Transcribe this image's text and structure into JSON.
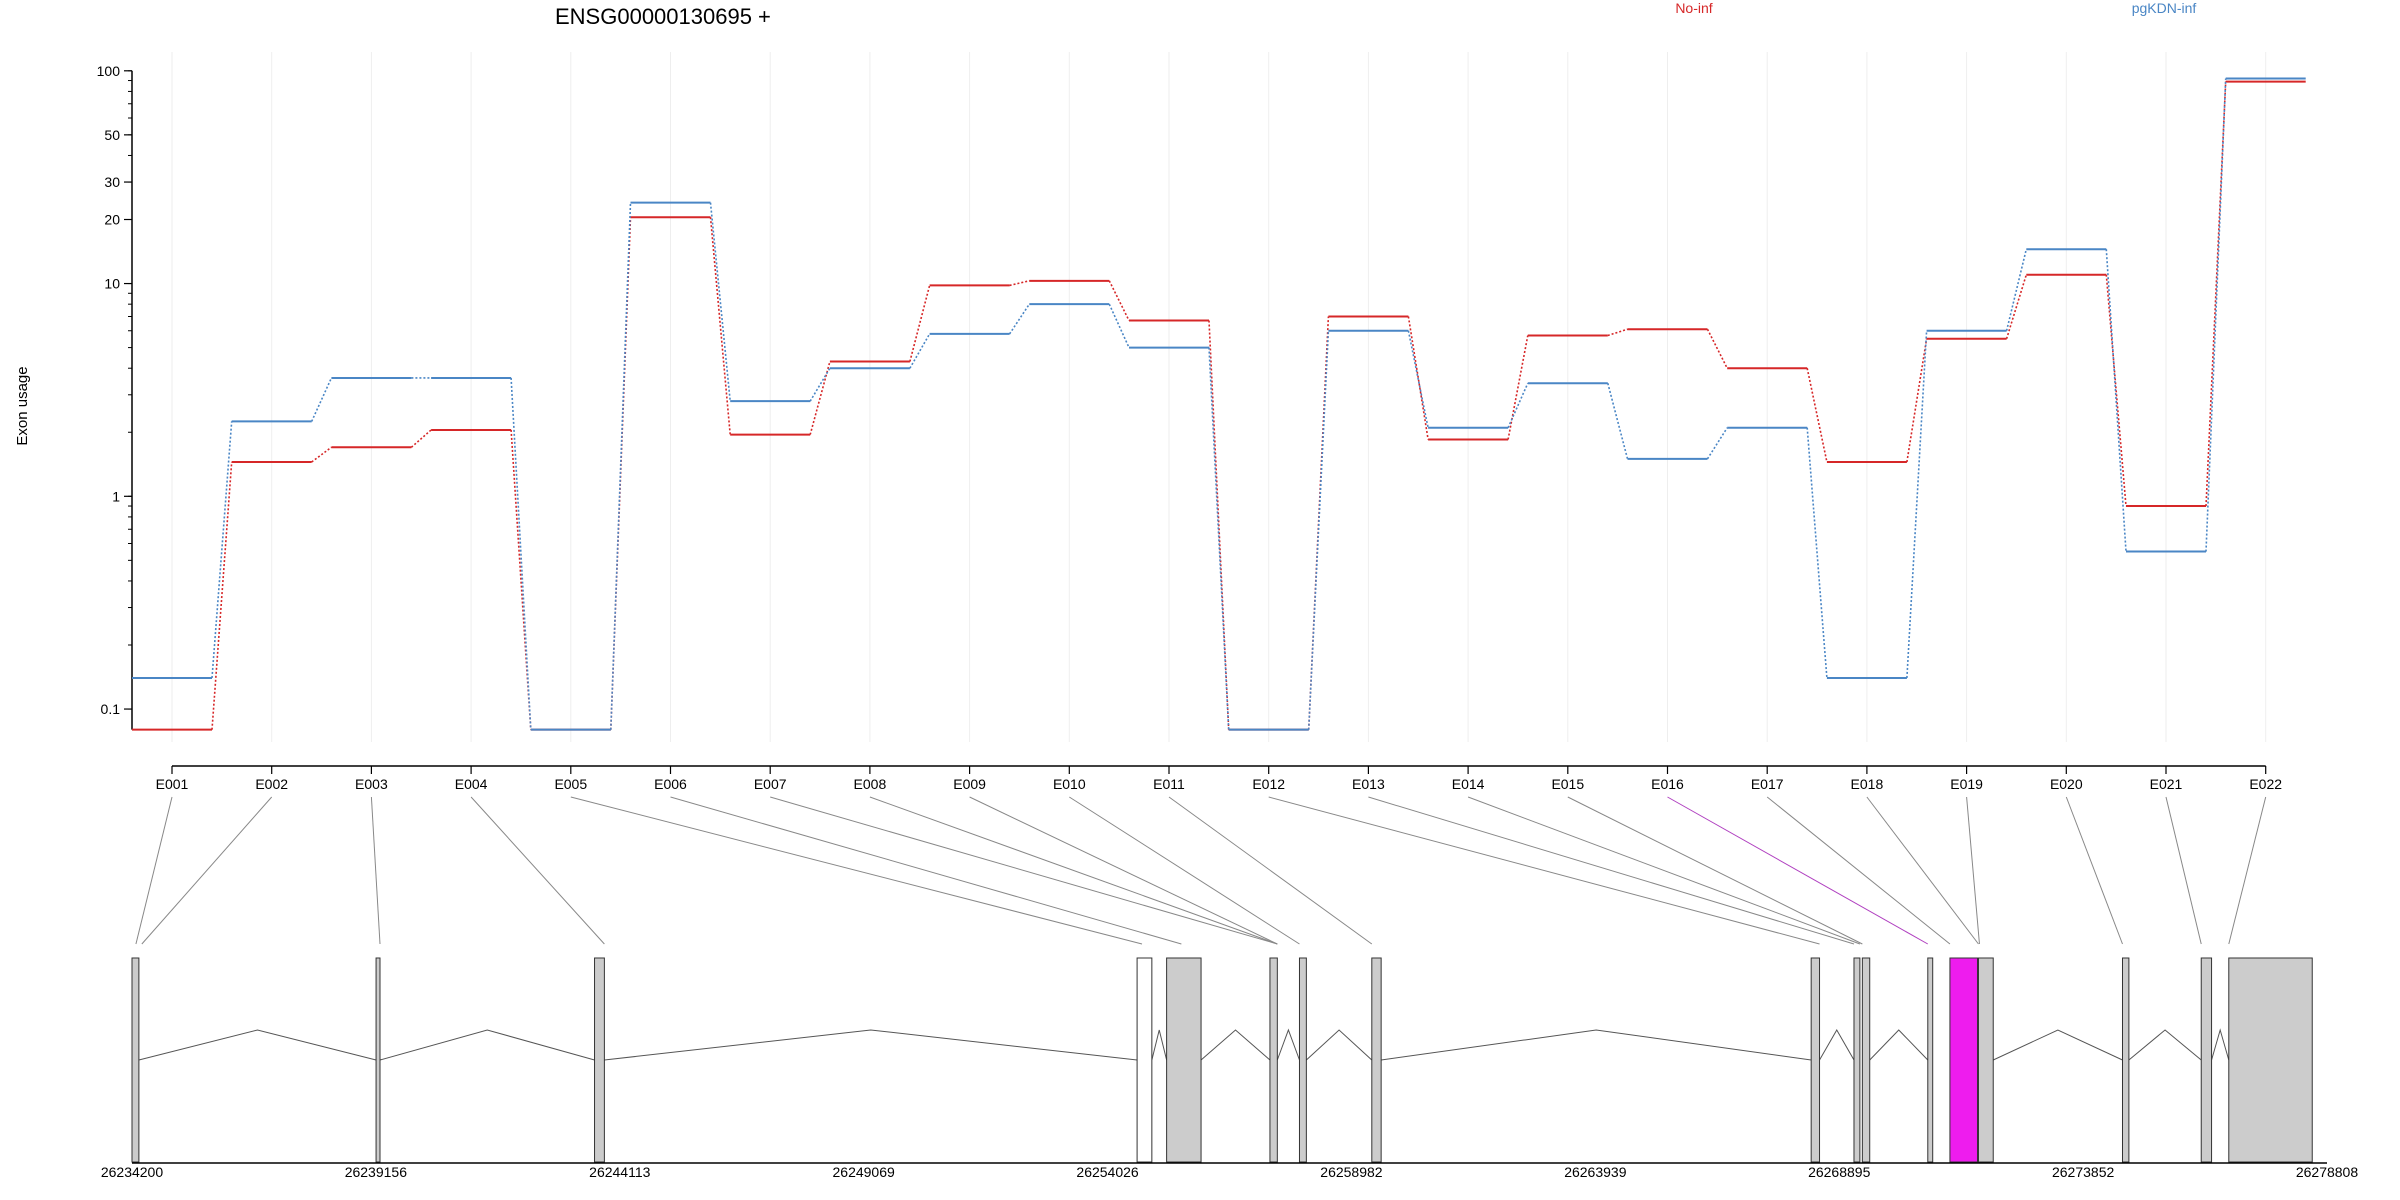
{
  "chart_data": {
    "type": "line",
    "title": "ENSG00000130695 +",
    "ylabel": "Exon usage",
    "xlabel": "",
    "yscale": "log",
    "ylim": [
      0.07,
      110
    ],
    "yticks": [
      "0.1",
      "1",
      "10",
      "20",
      "30",
      "50",
      "100"
    ],
    "ytick_values": [
      0.1,
      1,
      10,
      20,
      30,
      50,
      100
    ],
    "grid": "vertical",
    "legend": "top",
    "highlight_exon": "E016",
    "categories": [
      "E001",
      "E002",
      "E003",
      "E004",
      "E005",
      "E006",
      "E007",
      "E008",
      "E009",
      "E010",
      "E011",
      "E012",
      "E013",
      "E014",
      "E015",
      "E016",
      "E017",
      "E018",
      "E019",
      "E020",
      "E021",
      "E022"
    ],
    "series": [
      {
        "name": "No-inf",
        "color": "#D62728",
        "values": [
          0.08,
          1.45,
          1.7,
          2.05,
          0.08,
          20.5,
          1.95,
          4.3,
          9.8,
          10.3,
          6.7,
          0.08,
          7.0,
          1.85,
          5.7,
          6.1,
          4.0,
          1.45,
          5.5,
          11.0,
          0.9,
          89.0
        ]
      },
      {
        "name": "pgKDN-inf",
        "color": "#4A86C5",
        "values": [
          0.14,
          2.25,
          3.6,
          3.6,
          0.08,
          24.0,
          2.8,
          4.0,
          5.8,
          8.0,
          5.0,
          0.08,
          6.0,
          2.1,
          3.4,
          1.5,
          2.1,
          0.14,
          6.0,
          14.5,
          0.55,
          92.0
        ]
      }
    ],
    "gene_model": {
      "coordinates": [
        "26234200",
        "26239156",
        "26244113",
        "26249069",
        "26254026",
        "26258982",
        "26263939",
        "26268895",
        "26273852",
        "26278808"
      ],
      "coordinate_values": [
        26234200,
        26239156,
        26244113,
        26249069,
        26254026,
        26258982,
        26263939,
        26268895,
        26273852,
        26278808
      ],
      "range": [
        26234200,
        26278808
      ],
      "exon_color": "#CCCCCC",
      "highlight_color": "#EE1CEE",
      "intron_color": "#555555",
      "link_color": "#888888",
      "link_highlight_color": "#B040C0",
      "blocks": [
        {
          "start": 26234200,
          "end": 26234340,
          "fill": "#CCCCCC"
        },
        {
          "start": 26239160,
          "end": 26239240,
          "fill": "#CCCCCC"
        },
        {
          "start": 26243600,
          "end": 26243800,
          "fill": "#CCCCCC"
        },
        {
          "start": 26254626,
          "end": 26254926,
          "fill": "#FFFFFF"
        },
        {
          "start": 26255226,
          "end": 26255926,
          "fill": "#CCCCCC"
        },
        {
          "start": 26257326,
          "end": 26257476,
          "fill": "#CCCCCC"
        },
        {
          "start": 26257926,
          "end": 26258066,
          "fill": "#CCCCCC"
        },
        {
          "start": 26259396,
          "end": 26259586,
          "fill": "#CCCCCC"
        },
        {
          "start": 26268325,
          "end": 26268495,
          "fill": "#CCCCCC"
        },
        {
          "start": 26269195,
          "end": 26269315,
          "fill": "#CCCCCC"
        },
        {
          "start": 26269365,
          "end": 26269515,
          "fill": "#CCCCCC"
        },
        {
          "start": 26270695,
          "end": 26270795,
          "fill": "#CCCCCC"
        },
        {
          "start": 26271145,
          "end": 26271705,
          "fill": "#EE1CEE"
        },
        {
          "start": 26271725,
          "end": 26272025,
          "fill": "#CCCCCC"
        },
        {
          "start": 26274652,
          "end": 26274782,
          "fill": "#CCCCCC"
        },
        {
          "start": 26276252,
          "end": 26276462,
          "fill": "#CCCCCC"
        },
        {
          "start": 26276812,
          "end": 26278508,
          "fill": "#CCCCCC"
        }
      ],
      "introns": [
        {
          "start": 26234340,
          "end": 26239160
        },
        {
          "start": 26239240,
          "end": 26243600
        },
        {
          "start": 26243800,
          "end": 26254626
        },
        {
          "start": 26254926,
          "end": 26255226
        },
        {
          "start": 26255926,
          "end": 26257326
        },
        {
          "start": 26257476,
          "end": 26257926
        },
        {
          "start": 26258066,
          "end": 26259396
        },
        {
          "start": 26259586,
          "end": 26268325
        },
        {
          "start": 26268495,
          "end": 26269195
        },
        {
          "start": 26269515,
          "end": 26270695
        },
        {
          "start": 26272025,
          "end": 26274652
        },
        {
          "start": 26274782,
          "end": 26276252
        },
        {
          "start": 26276462,
          "end": 26276812
        }
      ],
      "exon_links": [
        26234280,
        26234400,
        26239240,
        26243800,
        26254726,
        26255526,
        26257476,
        26257476,
        26257476,
        26257926,
        26259396,
        26268495,
        26269195,
        26269315,
        26269365,
        26270695,
        26271145,
        26271725,
        26271745,
        26274652,
        26276252,
        26276812
      ]
    }
  }
}
